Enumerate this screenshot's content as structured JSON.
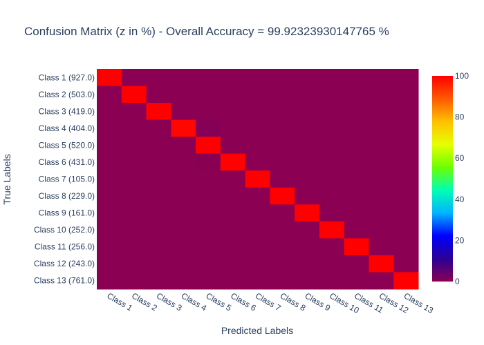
{
  "chart_data": {
    "type": "heatmap",
    "title": "Confusion Matrix (z in %) - Overall Accuracy = 99.92323930147765 %",
    "xlabel": "Predicted Labels",
    "ylabel": "True Labels",
    "x_categories": [
      "Class 1",
      "Class 2",
      "Class 3",
      "Class 4",
      "Class 5",
      "Class 6",
      "Class 7",
      "Class 8",
      "Class 9",
      "Class 10",
      "Class 11",
      "Class 12",
      "Class 13"
    ],
    "y_categories": [
      "Class 1 (927.0)",
      "Class 2 (503.0)",
      "Class 3 (419.0)",
      "Class 4 (404.0)",
      "Class 5 (520.0)",
      "Class 6 (431.0)",
      "Class 7 (105.0)",
      "Class 8 (229.0)",
      "Class 9 (161.0)",
      "Class 10 (252.0)",
      "Class 11 (256.0)",
      "Class 12 (243.0)",
      "Class 13 (761.0)"
    ],
    "z": [
      [
        100,
        0,
        0,
        0,
        0,
        0,
        0,
        0,
        0,
        0,
        0,
        0,
        0
      ],
      [
        0,
        100,
        0,
        0,
        0,
        0,
        0,
        0,
        0,
        0,
        0,
        0,
        0
      ],
      [
        0,
        0,
        100,
        0,
        0,
        0,
        0,
        0,
        0,
        0,
        0,
        0,
        0
      ],
      [
        0,
        0,
        0,
        99.26,
        0.74,
        0,
        0,
        0,
        0,
        0,
        0,
        0,
        0
      ],
      [
        0,
        0,
        0,
        0,
        100,
        0,
        0,
        0,
        0,
        0,
        0,
        0,
        0
      ],
      [
        0,
        0,
        0,
        0,
        0.23,
        99.77,
        0,
        0,
        0,
        0,
        0,
        0,
        0
      ],
      [
        0,
        0,
        0,
        0,
        0,
        0,
        100,
        0,
        0,
        0,
        0,
        0,
        0
      ],
      [
        0,
        0,
        0,
        0,
        0,
        0,
        0,
        100,
        0,
        0,
        0,
        0,
        0
      ],
      [
        0,
        0,
        0,
        0,
        0,
        0,
        0,
        0,
        100,
        0,
        0,
        0,
        0
      ],
      [
        0,
        0,
        0,
        0,
        0,
        0,
        0,
        0,
        0,
        100,
        0,
        0,
        0
      ],
      [
        0,
        0,
        0,
        0,
        0,
        0,
        0,
        0,
        0,
        0,
        100,
        0,
        0
      ],
      [
        0,
        0,
        0,
        0,
        0,
        0,
        0,
        0,
        0,
        0,
        0,
        100,
        0
      ],
      [
        0,
        0,
        0,
        0,
        0,
        0,
        0,
        0,
        0,
        0,
        0,
        0,
        100
      ]
    ],
    "zlim": [
      0,
      100
    ],
    "colorbar_ticks": [
      0,
      20,
      40,
      60,
      80,
      100
    ],
    "colorscale": [
      "#8b0052",
      "#2b0096",
      "#0000ff",
      "#00b4ff",
      "#00ffb4",
      "#6bff00",
      "#e6ff00",
      "#ffc000",
      "#ff5a00",
      "#ff0000"
    ],
    "grid": false
  }
}
